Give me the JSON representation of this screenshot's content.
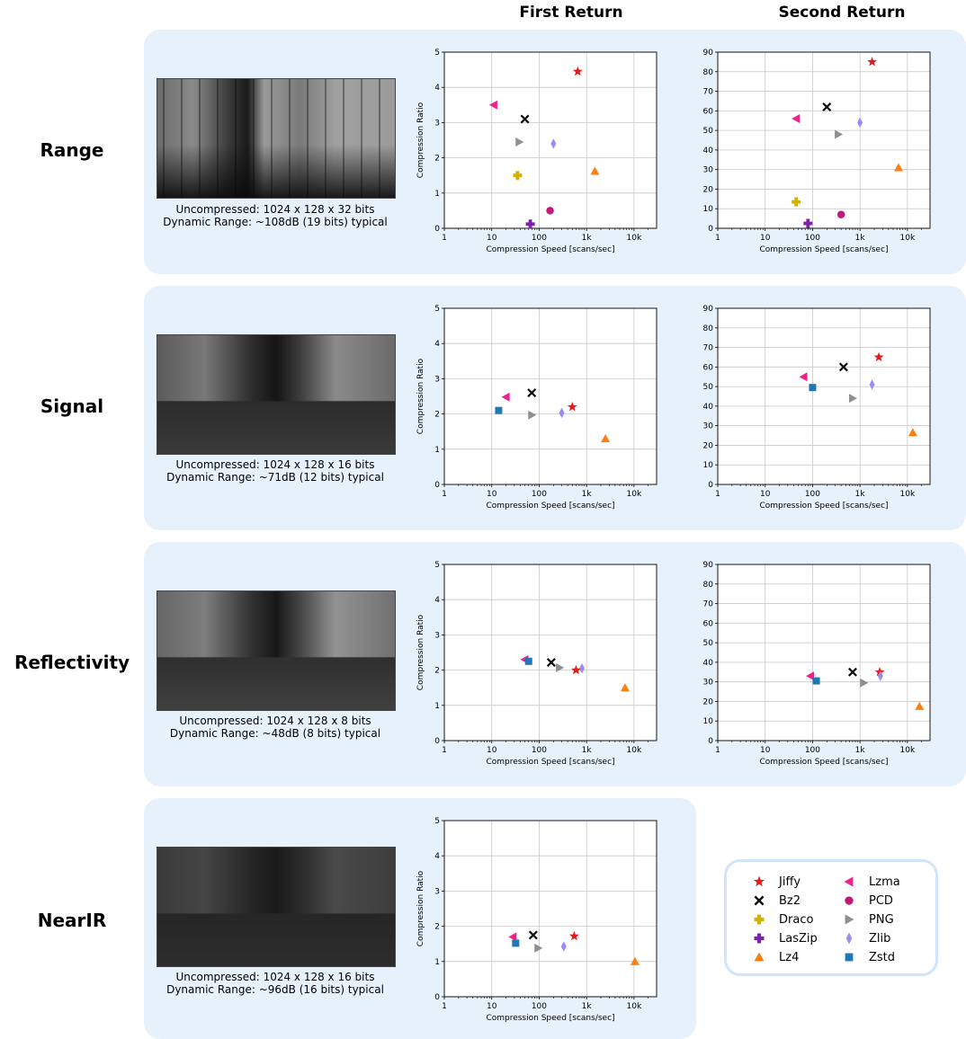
{
  "headers": {
    "first": "First Return",
    "second": "Second Return"
  },
  "rows": [
    {
      "key": "range",
      "label": "Range",
      "caption1": "Uncompressed: 1024 x 128 x 32 bits",
      "caption2": "Dynamic Range: ~108dB (19 bits) typical"
    },
    {
      "key": "signal",
      "label": "Signal",
      "caption1": "Uncompressed: 1024 x 128 x 16 bits",
      "caption2": "Dynamic Range: ~71dB (12 bits) typical"
    },
    {
      "key": "reflectivity",
      "label": "Reflectivity",
      "caption1": "Uncompressed: 1024 x 128 x 8 bits",
      "caption2": "Dynamic Range: ~48dB (8 bits) typical"
    },
    {
      "key": "nearir",
      "label": "NearIR",
      "caption1": "Uncompressed: 1024 x 128 x 16 bits",
      "caption2": "Dynamic Range: ~96dB (16 bits) typical"
    }
  ],
  "legend": [
    {
      "name": "Jiffy",
      "marker": "star",
      "color": "#e41a1c"
    },
    {
      "name": "Lzma",
      "marker": "tri-left",
      "color": "#f0218c"
    },
    {
      "name": "Bz2",
      "marker": "x",
      "color": "#111111"
    },
    {
      "name": "PCD",
      "marker": "circle",
      "color": "#c2187a"
    },
    {
      "name": "Draco",
      "marker": "plus",
      "color": "#d4b000"
    },
    {
      "name": "PNG",
      "marker": "tri-right",
      "color": "#8f8f8f"
    },
    {
      "name": "LasZip",
      "marker": "plus",
      "color": "#7b22a8"
    },
    {
      "name": "Zlib",
      "marker": "diamond",
      "color": "#9a8cf5"
    },
    {
      "name": "Lz4",
      "marker": "tri-up",
      "color": "#ff7f0e"
    },
    {
      "name": "Zstd",
      "marker": "square",
      "color": "#1f77b4"
    }
  ],
  "chart_data": [
    {
      "id": "range-first",
      "type": "scatter",
      "xlabel": "Compression Speed [scans/sec]",
      "ylabel": "Compression Ratio",
      "xscale": "log",
      "xlim": [
        1,
        30000
      ],
      "ylim": [
        0,
        5
      ],
      "yticks": [
        0,
        1,
        2,
        3,
        4,
        5
      ],
      "xticks": [
        1,
        10,
        100,
        1000,
        10000
      ],
      "xticklabels": [
        "1",
        "10",
        "100",
        "1k",
        "10k"
      ],
      "grid": true,
      "points": [
        {
          "series": "Jiffy",
          "x": 650,
          "y": 4.45
        },
        {
          "series": "Lzma",
          "x": 11,
          "y": 3.5
        },
        {
          "series": "Bz2",
          "x": 50,
          "y": 3.1
        },
        {
          "series": "PNG",
          "x": 38,
          "y": 2.45
        },
        {
          "series": "Zlib",
          "x": 200,
          "y": 2.4
        },
        {
          "series": "Lz4",
          "x": 1500,
          "y": 1.62
        },
        {
          "series": "Draco",
          "x": 35,
          "y": 1.5
        },
        {
          "series": "PCD",
          "x": 170,
          "y": 0.5
        },
        {
          "series": "LasZip",
          "x": 65,
          "y": 0.12
        }
      ]
    },
    {
      "id": "range-second",
      "type": "scatter",
      "xlabel": "Compression Speed [scans/sec]",
      "ylabel": "",
      "xscale": "log",
      "xlim": [
        1,
        30000
      ],
      "ylim": [
        0,
        90
      ],
      "yticks": [
        0,
        10,
        20,
        30,
        40,
        50,
        60,
        70,
        80,
        90
      ],
      "xticks": [
        1,
        10,
        100,
        1000,
        10000
      ],
      "xticklabels": [
        "1",
        "10",
        "100",
        "1k",
        "10k"
      ],
      "grid": true,
      "points": [
        {
          "series": "Jiffy",
          "x": 1800,
          "y": 85
        },
        {
          "series": "Bz2",
          "x": 200,
          "y": 62
        },
        {
          "series": "Lzma",
          "x": 45,
          "y": 56
        },
        {
          "series": "Zlib",
          "x": 1000,
          "y": 54
        },
        {
          "series": "PNG",
          "x": 350,
          "y": 48
        },
        {
          "series": "Lz4",
          "x": 6500,
          "y": 31
        },
        {
          "series": "Draco",
          "x": 45,
          "y": 13.5
        },
        {
          "series": "PCD",
          "x": 400,
          "y": 7
        },
        {
          "series": "LasZip",
          "x": 80,
          "y": 2.5
        }
      ]
    },
    {
      "id": "signal-first",
      "type": "scatter",
      "xlabel": "Compression Speed [scans/sec]",
      "ylabel": "Compression Ratio",
      "xscale": "log",
      "xlim": [
        1,
        30000
      ],
      "ylim": [
        0,
        5
      ],
      "yticks": [
        0,
        1,
        2,
        3,
        4,
        5
      ],
      "xticks": [
        1,
        10,
        100,
        1000,
        10000
      ],
      "xticklabels": [
        "1",
        "10",
        "100",
        "1k",
        "10k"
      ],
      "grid": true,
      "points": [
        {
          "series": "Bz2",
          "x": 70,
          "y": 2.6
        },
        {
          "series": "Lzma",
          "x": 20,
          "y": 2.48
        },
        {
          "series": "Jiffy",
          "x": 500,
          "y": 2.2
        },
        {
          "series": "Zstd",
          "x": 14,
          "y": 2.1
        },
        {
          "series": "Zlib",
          "x": 300,
          "y": 2.03
        },
        {
          "series": "PNG",
          "x": 70,
          "y": 1.97
        },
        {
          "series": "Lz4",
          "x": 2500,
          "y": 1.3
        }
      ]
    },
    {
      "id": "signal-second",
      "type": "scatter",
      "xlabel": "Compression Speed [scans/sec]",
      "ylabel": "",
      "xscale": "log",
      "xlim": [
        1,
        30000
      ],
      "ylim": [
        0,
        90
      ],
      "yticks": [
        0,
        10,
        20,
        30,
        40,
        50,
        60,
        70,
        80,
        90
      ],
      "xticks": [
        1,
        10,
        100,
        1000,
        10000
      ],
      "xticklabels": [
        "1",
        "10",
        "100",
        "1k",
        "10k"
      ],
      "grid": true,
      "points": [
        {
          "series": "Jiffy",
          "x": 2500,
          "y": 65
        },
        {
          "series": "Bz2",
          "x": 450,
          "y": 60
        },
        {
          "series": "Lzma",
          "x": 65,
          "y": 55
        },
        {
          "series": "Zlib",
          "x": 1800,
          "y": 51
        },
        {
          "series": "Zstd",
          "x": 100,
          "y": 49.5
        },
        {
          "series": "PNG",
          "x": 700,
          "y": 44
        },
        {
          "series": "Lz4",
          "x": 13000,
          "y": 26.5
        }
      ]
    },
    {
      "id": "reflectivity-first",
      "type": "scatter",
      "xlabel": "Compression Speed [scans/sec]",
      "ylabel": "Compression Ratio",
      "xscale": "log",
      "xlim": [
        1,
        30000
      ],
      "ylim": [
        0,
        5
      ],
      "yticks": [
        0,
        1,
        2,
        3,
        4,
        5
      ],
      "xticks": [
        1,
        10,
        100,
        1000,
        10000
      ],
      "xticklabels": [
        "1",
        "10",
        "100",
        "1k",
        "10k"
      ],
      "grid": true,
      "points": [
        {
          "series": "Lzma",
          "x": 50,
          "y": 2.3
        },
        {
          "series": "Zstd",
          "x": 60,
          "y": 2.25
        },
        {
          "series": "Bz2",
          "x": 180,
          "y": 2.22
        },
        {
          "series": "PNG",
          "x": 270,
          "y": 2.07
        },
        {
          "series": "Zlib",
          "x": 800,
          "y": 2.05
        },
        {
          "series": "Jiffy",
          "x": 600,
          "y": 2.0
        },
        {
          "series": "Lz4",
          "x": 6500,
          "y": 1.5
        }
      ]
    },
    {
      "id": "reflectivity-second",
      "type": "scatter",
      "xlabel": "Compression Speed [scans/sec]",
      "ylabel": "",
      "xscale": "log",
      "xlim": [
        1,
        30000
      ],
      "ylim": [
        0,
        90
      ],
      "yticks": [
        0,
        10,
        20,
        30,
        40,
        50,
        60,
        70,
        80,
        90
      ],
      "xticks": [
        1,
        10,
        100,
        1000,
        10000
      ],
      "xticklabels": [
        "1",
        "10",
        "100",
        "1k",
        "10k"
      ],
      "grid": true,
      "points": [
        {
          "series": "Bz2",
          "x": 700,
          "y": 35
        },
        {
          "series": "Jiffy",
          "x": 2600,
          "y": 35
        },
        {
          "series": "Lzma",
          "x": 90,
          "y": 33
        },
        {
          "series": "Zlib",
          "x": 2700,
          "y": 33
        },
        {
          "series": "Zstd",
          "x": 120,
          "y": 30.5
        },
        {
          "series": "PNG",
          "x": 1200,
          "y": 29.5
        },
        {
          "series": "Lz4",
          "x": 18000,
          "y": 17.5
        }
      ]
    },
    {
      "id": "nearir-first",
      "type": "scatter",
      "xlabel": "Compression Speed [scans/sec]",
      "ylabel": "Compression Ratio",
      "xscale": "log",
      "xlim": [
        1,
        30000
      ],
      "ylim": [
        0,
        5
      ],
      "yticks": [
        0,
        1,
        2,
        3,
        4,
        5
      ],
      "xticks": [
        1,
        10,
        100,
        1000,
        10000
      ],
      "xticklabels": [
        "1",
        "10",
        "100",
        "1k",
        "10k"
      ],
      "grid": true,
      "points": [
        {
          "series": "Bz2",
          "x": 75,
          "y": 1.75
        },
        {
          "series": "Jiffy",
          "x": 550,
          "y": 1.72
        },
        {
          "series": "Lzma",
          "x": 28,
          "y": 1.7
        },
        {
          "series": "Zstd",
          "x": 32,
          "y": 1.52
        },
        {
          "series": "Zlib",
          "x": 330,
          "y": 1.43
        },
        {
          "series": "PNG",
          "x": 95,
          "y": 1.38
        },
        {
          "series": "Lz4",
          "x": 10500,
          "y": 1.0
        }
      ]
    }
  ]
}
